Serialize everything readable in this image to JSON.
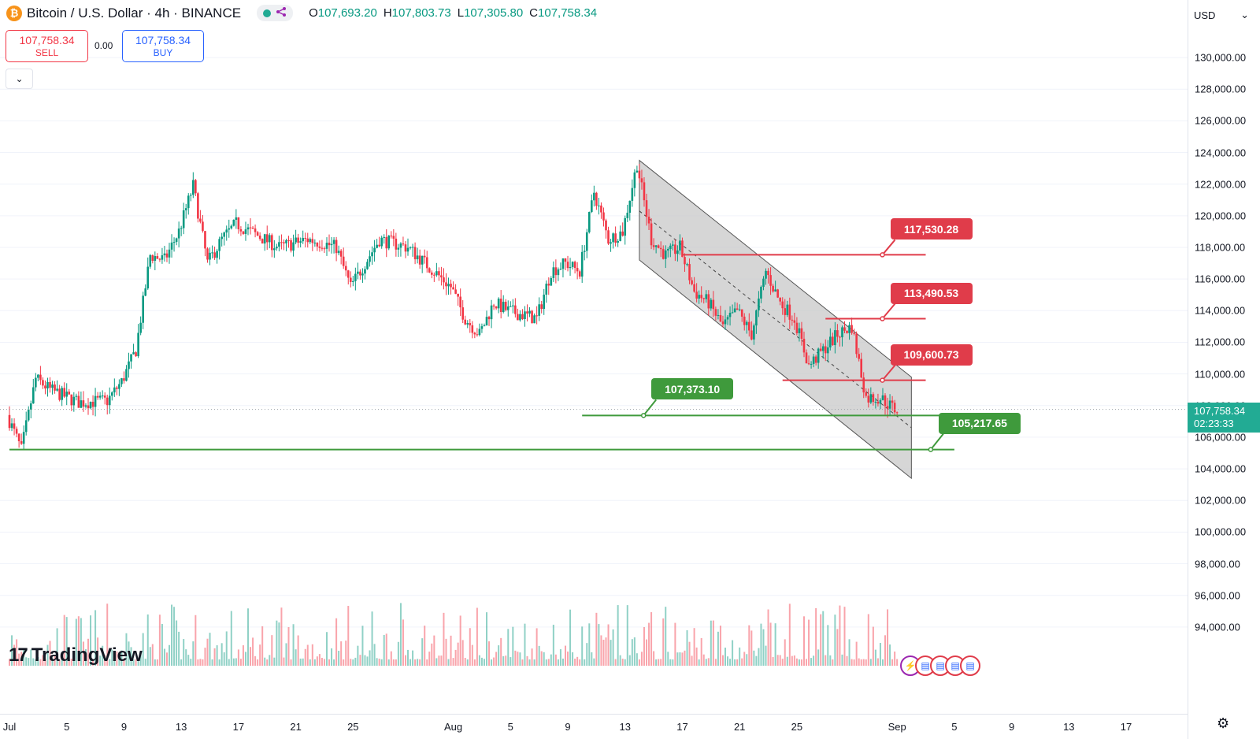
{
  "header": {
    "coin_symbol": "₿",
    "title": "Bitcoin / U.S. Dollar · 4h · BINANCE",
    "ohlc": [
      {
        "k": "O",
        "v": "107,693.20"
      },
      {
        "k": "H",
        "v": "107,803.73"
      },
      {
        "k": "L",
        "v": "107,305.80"
      },
      {
        "k": "C",
        "v": "107,758.34"
      }
    ]
  },
  "trade": {
    "sell_price": "107,758.34",
    "sell_label": "SELL",
    "spread": "0.00",
    "buy_price": "107,758.34",
    "buy_label": "BUY"
  },
  "toolbar": {
    "collapse_glyph": "⌄"
  },
  "currency": {
    "label": "USD",
    "chevron": "⌄"
  },
  "price_tag": {
    "price": "107,758.34",
    "countdown": "02:23:33"
  },
  "brand": {
    "mark": "17",
    "name": "TradingView"
  },
  "colors": {
    "up": "#089981",
    "down": "#f23645",
    "channel_fill": "#c8c8c8",
    "resistance": "#e03c4a",
    "support": "#3f9a3c"
  },
  "icons": {
    "settings": "gear-icon",
    "share": "share-icon"
  },
  "chart_data": {
    "type": "candlestick",
    "y_ticks": [
      "130,000.00",
      "128,000.00",
      "126,000.00",
      "124,000.00",
      "122,000.00",
      "120,000.00",
      "118,000.00",
      "116,000.00",
      "114,000.00",
      "112,000.00",
      "110,000.00",
      "108,000.00",
      "106,000.00",
      "104,000.00",
      "102,000.00",
      "100,000.00",
      "98,000.00",
      "96,000.00",
      "94,000.00"
    ],
    "y_range": [
      92000,
      131000
    ],
    "x_ticks": [
      "Jul",
      "5",
      "9",
      "13",
      "17",
      "21",
      "25",
      "Aug",
      "5",
      "9",
      "13",
      "17",
      "21",
      "25",
      "Sep",
      "5",
      "9",
      "13",
      "17"
    ],
    "x_range": [
      "2025-07-01",
      "2025-09-20"
    ],
    "price_path": [
      [
        "2025-07-01",
        107400
      ],
      [
        "2025-07-02",
        105200
      ],
      [
        "2025-07-03",
        109700
      ],
      [
        "2025-07-04",
        109000
      ],
      [
        "2025-07-06",
        108200
      ],
      [
        "2025-07-08",
        108300
      ],
      [
        "2025-07-09",
        109500
      ],
      [
        "2025-07-10",
        111500
      ],
      [
        "2025-07-11",
        117500
      ],
      [
        "2025-07-12",
        117200
      ],
      [
        "2025-07-13",
        119000
      ],
      [
        "2025-07-14",
        121900
      ],
      [
        "2025-07-15",
        117000
      ],
      [
        "2025-07-16",
        118500
      ],
      [
        "2025-07-17",
        119500
      ],
      [
        "2025-07-18",
        119000
      ],
      [
        "2025-07-20",
        118000
      ],
      [
        "2025-07-22",
        118500
      ],
      [
        "2025-07-23",
        118300
      ],
      [
        "2025-07-24",
        118000
      ],
      [
        "2025-07-25",
        115500
      ],
      [
        "2025-07-27",
        118500
      ],
      [
        "2025-07-29",
        118000
      ],
      [
        "2025-08-01",
        115500
      ],
      [
        "2025-08-02",
        113500
      ],
      [
        "2025-08-03",
        112500
      ],
      [
        "2025-08-04",
        114500
      ],
      [
        "2025-08-05",
        114000
      ],
      [
        "2025-08-07",
        113500
      ],
      [
        "2025-08-08",
        116500
      ],
      [
        "2025-08-09",
        117000
      ],
      [
        "2025-08-10",
        116500
      ],
      [
        "2025-08-11",
        121500
      ],
      [
        "2025-08-12",
        118500
      ],
      [
        "2025-08-13",
        119000
      ],
      [
        "2025-08-14",
        123300
      ],
      [
        "2025-08-15",
        118500
      ],
      [
        "2025-08-16",
        117500
      ],
      [
        "2025-08-17",
        118000
      ],
      [
        "2025-08-18",
        115200
      ],
      [
        "2025-08-19",
        114500
      ],
      [
        "2025-08-20",
        113000
      ],
      [
        "2025-08-21",
        114000
      ],
      [
        "2025-08-22",
        112500
      ],
      [
        "2025-08-23",
        116500
      ],
      [
        "2025-08-24",
        114500
      ],
      [
        "2025-08-25",
        113500
      ],
      [
        "2025-08-26",
        110500
      ],
      [
        "2025-08-27",
        111500
      ],
      [
        "2025-08-28",
        112500
      ],
      [
        "2025-08-29",
        113000
      ],
      [
        "2025-08-30",
        108500
      ],
      [
        "2025-08-31",
        108500
      ],
      [
        "2025-09-01",
        107760
      ]
    ],
    "channel": {
      "upper_start": [
        "2025-08-14",
        123500
      ],
      "upper_end": [
        "2025-09-02",
        109800
      ],
      "lower_start": [
        "2025-08-14",
        117200
      ],
      "lower_end": [
        "2025-09-02",
        103400
      ],
      "mid_start": [
        "2025-08-14",
        120300
      ],
      "mid_end": [
        "2025-09-02",
        106600
      ]
    },
    "levels": [
      {
        "label": "117,530.28",
        "price": 117530.28,
        "kind": "resistance",
        "from": "2025-08-17",
        "to": "2025-09-03"
      },
      {
        "label": "113,490.53",
        "price": 113490.53,
        "kind": "resistance",
        "from": "2025-08-27",
        "to": "2025-09-03"
      },
      {
        "label": "109,600.73",
        "price": 109600.73,
        "kind": "resistance",
        "from": "2025-08-24",
        "to": "2025-09-03"
      },
      {
        "label": "107,373.10",
        "price": 107373.1,
        "kind": "support",
        "from": "2025-08-10",
        "to": "2025-09-04"
      },
      {
        "label": "105,217.65",
        "price": 105217.65,
        "kind": "support",
        "from": "2025-07-01",
        "to": "2025-09-05"
      }
    ]
  }
}
